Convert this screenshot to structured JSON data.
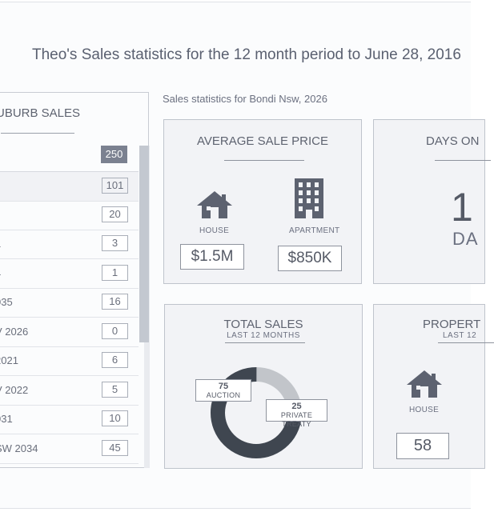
{
  "page": {
    "title": "Theo's Sales statistics for the 12 month period to June 28, 2016",
    "subtitle": "Sales statistics for Bondi Nsw, 2026"
  },
  "suburb_sales": {
    "title": "UBURB SALES",
    "total": "250",
    "rows": [
      {
        "name": "",
        "count": "101"
      },
      {
        "name": "",
        "count": "20"
      },
      {
        "name": "1",
        "count": "3"
      },
      {
        "name": "4",
        "count": "1"
      },
      {
        "name": "035",
        "count": "16"
      },
      {
        "name": "V 2026",
        "count": "0"
      },
      {
        "name": " 2021",
        "count": "6"
      },
      {
        "name": "V 2022",
        "count": "5"
      },
      {
        "name": "031",
        "count": "10"
      },
      {
        "name": "SW 2034",
        "count": "45"
      }
    ]
  },
  "average_sale_price": {
    "title": "AVERAGE SALE PRICE",
    "house_label": "HOUSE",
    "house_value": "$1.5M",
    "apartment_label": "APARTMENT",
    "apartment_value": "$850K"
  },
  "days_on_market": {
    "title": "DAYS ON",
    "value": "1",
    "unit": "DA"
  },
  "total_sales": {
    "title": "TOTAL SALES",
    "subtitle": "LAST 12 MONTHS",
    "auction_value": "75",
    "auction_label": "AUCTION",
    "private_value": "25",
    "private_label": "PRIVATE TREATY"
  },
  "property_card": {
    "title": "PROPERT",
    "subtitle": "LAST 12",
    "house_label": "HOUSE",
    "house_count": "58"
  },
  "colors": {
    "donut_primary": "#3f4650",
    "donut_secondary": "#c2c5ca",
    "icon": "#5d6270",
    "badge": "#7b8190"
  },
  "icons": [
    "house-icon",
    "apartment-icon"
  ]
}
